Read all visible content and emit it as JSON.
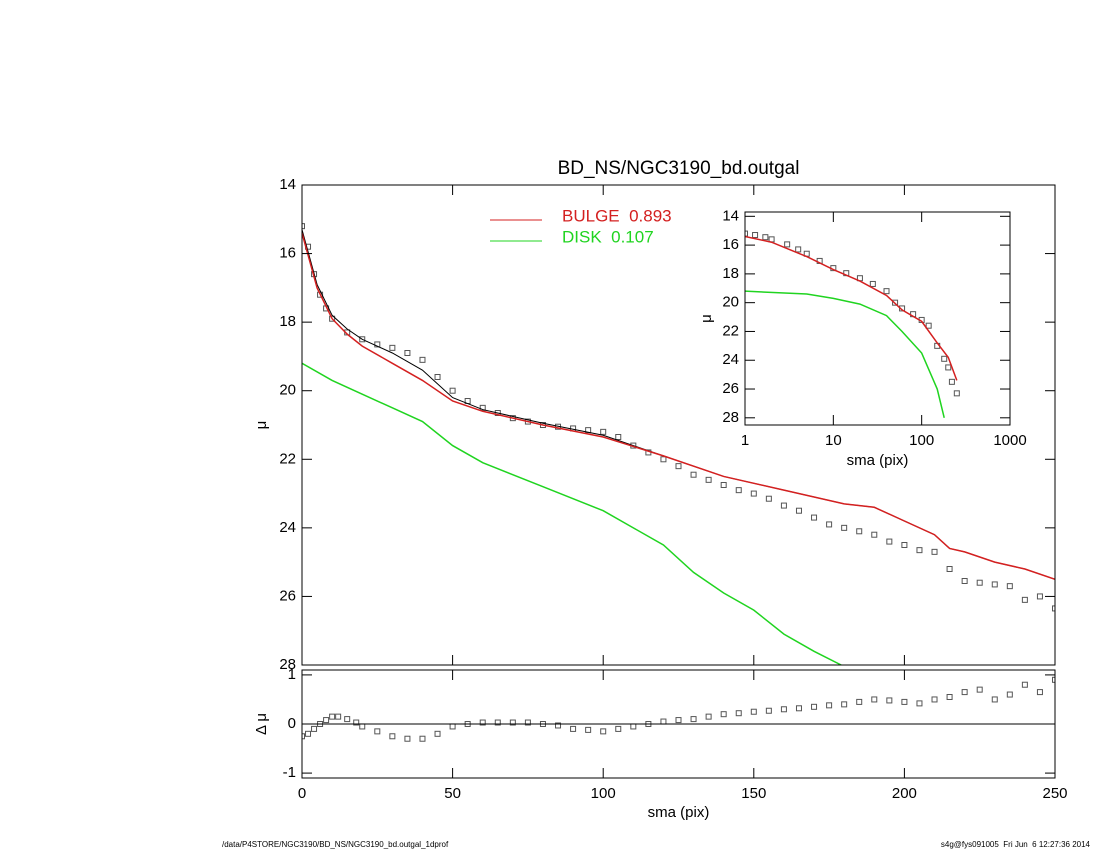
{
  "chart_data": [
    {
      "type": "line",
      "title": "BD_NS/NGC3190_bd.outgal",
      "ylabel": "μ",
      "xlim": [
        0,
        250
      ],
      "ylim": [
        28,
        14
      ],
      "yticks": [
        14,
        16,
        18,
        20,
        22,
        24,
        26,
        28
      ],
      "series": [
        {
          "style": "markers",
          "color": "#555555",
          "x": [
            0,
            2,
            4,
            6,
            8,
            10,
            15,
            20,
            25,
            30,
            35,
            40,
            45,
            50,
            55,
            60,
            65,
            70,
            75,
            80,
            85,
            90,
            95,
            100,
            105,
            110,
            115,
            120,
            125,
            130,
            135,
            140,
            145,
            150,
            155,
            160,
            165,
            170,
            175,
            180,
            185,
            190,
            195,
            200,
            205,
            210,
            215,
            220,
            225,
            230,
            235,
            240,
            245,
            250
          ],
          "values": [
            15.2,
            15.8,
            16.6,
            17.2,
            17.6,
            17.9,
            18.3,
            18.5,
            18.65,
            18.75,
            18.9,
            19.1,
            19.6,
            20.0,
            20.3,
            20.5,
            20.65,
            20.8,
            20.9,
            21.0,
            21.05,
            21.1,
            21.15,
            21.2,
            21.35,
            21.6,
            21.8,
            22.0,
            22.2,
            22.45,
            22.6,
            22.75,
            22.9,
            23.0,
            23.15,
            23.35,
            23.5,
            23.7,
            23.9,
            24.0,
            24.1,
            24.2,
            24.4,
            24.5,
            24.65,
            24.7,
            25.2,
            25.55,
            25.6,
            25.65,
            25.7,
            26.1,
            26.0,
            26.35
          ]
        },
        {
          "style": "line",
          "color": "#000000",
          "x": [
            0,
            5,
            10,
            15,
            20,
            30,
            40,
            50,
            60,
            80,
            100,
            120,
            140,
            160,
            180,
            190,
            200,
            210,
            215,
            220,
            230,
            240,
            250
          ],
          "values": [
            15.3,
            16.9,
            17.8,
            18.2,
            18.5,
            18.9,
            19.4,
            20.2,
            20.55,
            20.95,
            21.3,
            21.9,
            22.5,
            22.9,
            23.3,
            23.4,
            23.8,
            24.2,
            24.6,
            24.7,
            25.0,
            25.2,
            25.5
          ]
        },
        {
          "style": "line",
          "color": "#d42020",
          "name": "BULGE  0.893",
          "x": [
            0,
            5,
            10,
            15,
            20,
            30,
            40,
            50,
            60,
            80,
            100,
            120,
            140,
            160,
            180,
            190,
            200,
            210,
            215,
            220,
            230,
            240,
            250
          ],
          "values": [
            15.4,
            17.0,
            17.9,
            18.35,
            18.7,
            19.2,
            19.7,
            20.3,
            20.6,
            21.0,
            21.35,
            21.9,
            22.5,
            22.9,
            23.3,
            23.4,
            23.8,
            24.2,
            24.6,
            24.7,
            25.0,
            25.2,
            25.5
          ]
        },
        {
          "style": "line",
          "color": "#20d420",
          "name": "DISK  0.107",
          "x": [
            0,
            10,
            20,
            30,
            40,
            50,
            60,
            80,
            100,
            110,
            120,
            130,
            140,
            150,
            160,
            170,
            179
          ],
          "values": [
            19.2,
            19.7,
            20.1,
            20.5,
            20.9,
            21.6,
            22.1,
            22.8,
            23.5,
            24.0,
            24.5,
            25.3,
            25.9,
            26.4,
            27.1,
            27.6,
            28.0
          ]
        }
      ]
    },
    {
      "type": "line",
      "ylabel": "Δ μ",
      "xlabel": "sma (pix)",
      "xlim": [
        0,
        250
      ],
      "xticks": [
        0,
        50,
        100,
        150,
        200,
        250
      ],
      "ylim": [
        -1.1,
        1.1
      ],
      "yticks": [
        -1,
        0,
        1
      ],
      "hline": 0,
      "series": [
        {
          "style": "markers",
          "color": "#555555",
          "x": [
            0,
            2,
            4,
            6,
            8,
            10,
            12,
            15,
            18,
            20,
            25,
            30,
            35,
            40,
            45,
            50,
            55,
            60,
            65,
            70,
            75,
            80,
            85,
            90,
            95,
            100,
            105,
            110,
            115,
            120,
            125,
            130,
            135,
            140,
            145,
            150,
            155,
            160,
            165,
            170,
            175,
            180,
            185,
            190,
            195,
            200,
            205,
            210,
            215,
            220,
            225,
            230,
            235,
            240,
            245,
            250
          ],
          "values": [
            -0.25,
            -0.2,
            -0.1,
            0.0,
            0.08,
            0.15,
            0.15,
            0.1,
            0.03,
            -0.05,
            -0.15,
            -0.25,
            -0.3,
            -0.3,
            -0.2,
            -0.05,
            0.0,
            0.03,
            0.03,
            0.03,
            0.03,
            0.0,
            -0.03,
            -0.1,
            -0.12,
            -0.15,
            -0.1,
            -0.05,
            0.0,
            0.05,
            0.08,
            0.1,
            0.15,
            0.2,
            0.22,
            0.25,
            0.27,
            0.3,
            0.32,
            0.35,
            0.38,
            0.4,
            0.45,
            0.5,
            0.48,
            0.45,
            0.42,
            0.5,
            0.55,
            0.65,
            0.7,
            0.5,
            0.6,
            0.8,
            0.65,
            0.9
          ]
        }
      ]
    },
    {
      "type": "line",
      "ylabel": "μ",
      "xlabel": "sma (pix)",
      "xlog": true,
      "xlim": [
        1,
        1000
      ],
      "xticks": [
        1,
        10,
        100,
        1000
      ],
      "ylim": [
        28.5,
        13.7
      ],
      "yticks": [
        14,
        16,
        18,
        20,
        22,
        24,
        26,
        28
      ],
      "series": [
        {
          "style": "markers",
          "color": "#555555",
          "x": [
            1,
            1.3,
            1.7,
            2,
            3,
            4,
            5,
            7,
            10,
            14,
            20,
            28,
            40,
            50,
            60,
            80,
            100,
            120,
            150,
            180,
            200,
            220,
            250
          ],
          "values": [
            15.2,
            15.3,
            15.45,
            15.6,
            15.95,
            16.3,
            16.6,
            17.1,
            17.6,
            17.95,
            18.3,
            18.7,
            19.2,
            20.0,
            20.4,
            20.8,
            21.2,
            21.6,
            23.0,
            23.9,
            24.5,
            25.5,
            26.3
          ]
        },
        {
          "style": "line",
          "color": "#d42020",
          "x": [
            1,
            2,
            5,
            10,
            20,
            40,
            60,
            100,
            150,
            200,
            250
          ],
          "values": [
            15.4,
            15.8,
            16.8,
            17.7,
            18.5,
            19.5,
            20.5,
            21.3,
            22.8,
            23.8,
            25.4
          ]
        },
        {
          "style": "line",
          "color": "#20d420",
          "x": [
            1,
            5,
            10,
            20,
            40,
            60,
            100,
            150,
            180
          ],
          "values": [
            19.2,
            19.4,
            19.7,
            20.1,
            20.9,
            22.0,
            23.5,
            26.0,
            28.0
          ]
        }
      ]
    }
  ],
  "footer": {
    "left": "/data/P4STORE/NGC3190/BD_NS/NGC3190_bd.outgal_1dprof",
    "right": "s4g@fys091005  Fri Jun  6 12:27:36 2014"
  }
}
